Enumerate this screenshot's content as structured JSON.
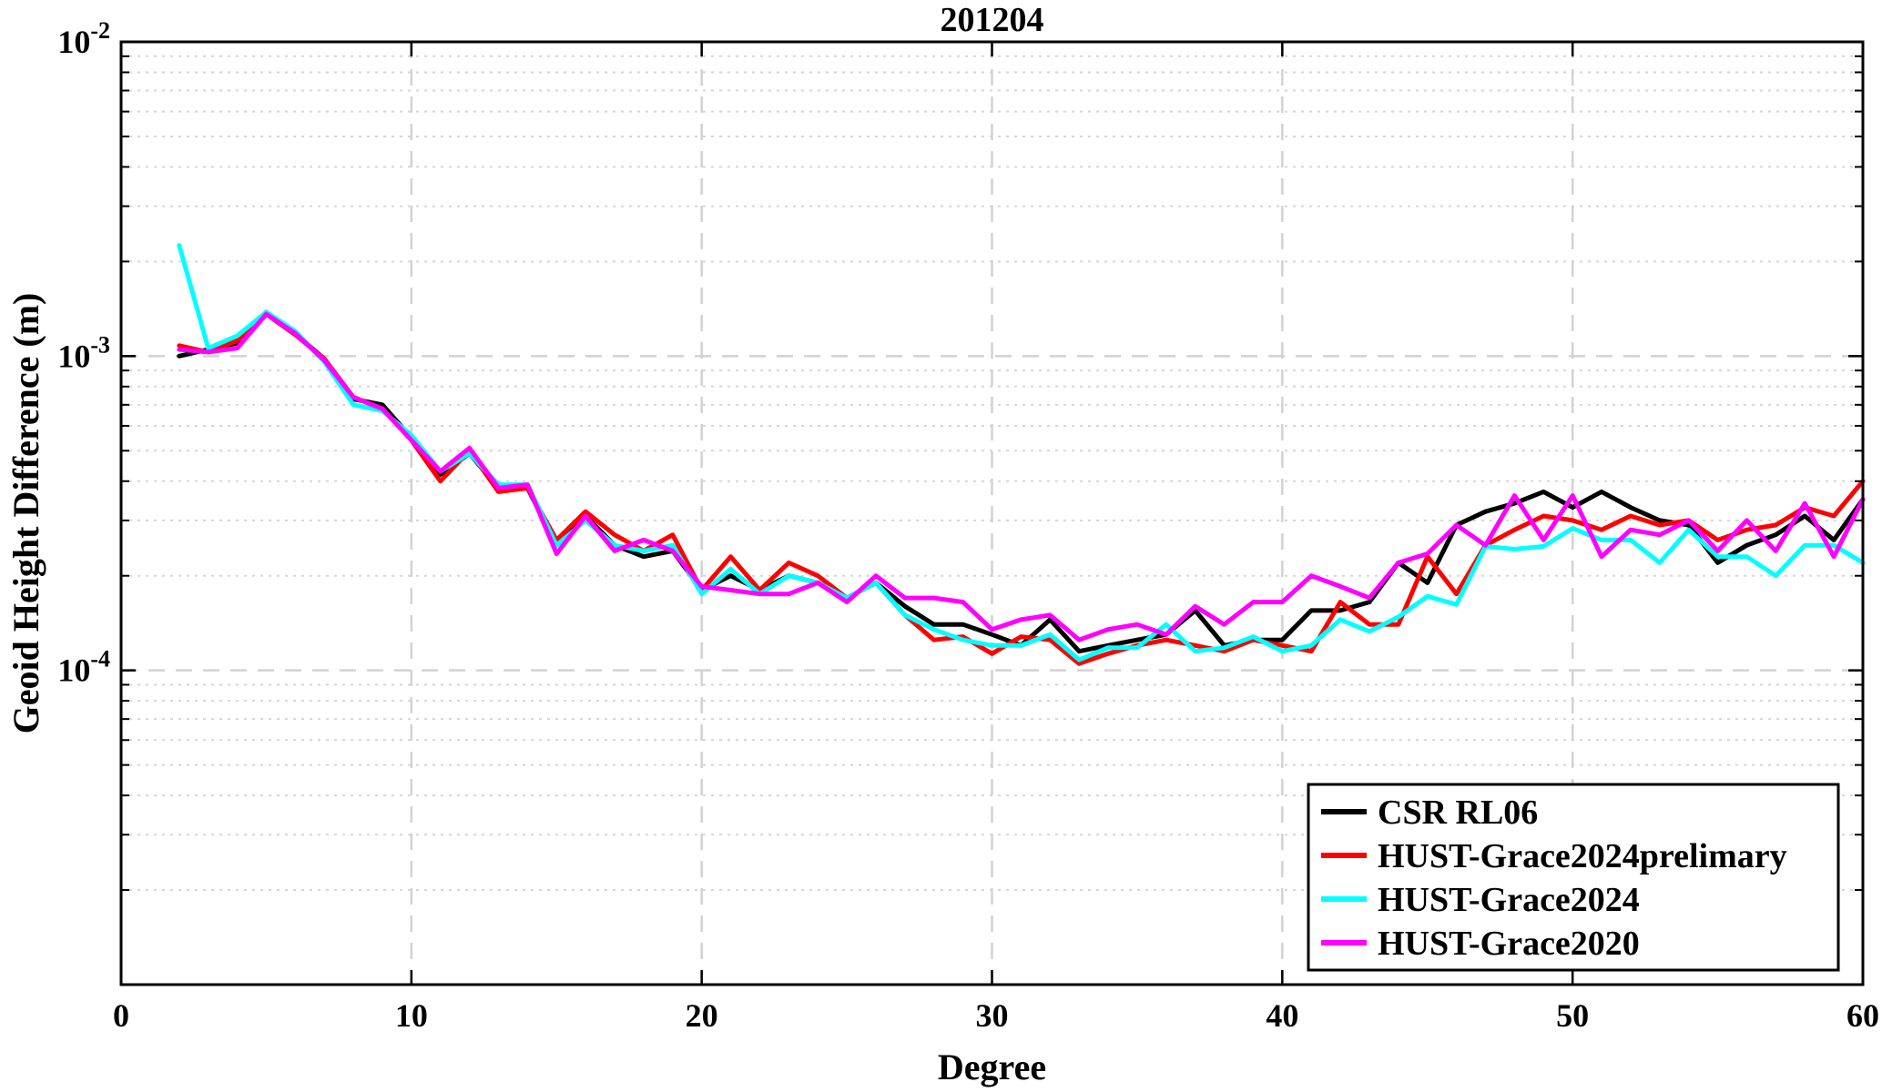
{
  "chart_data": {
    "type": "line",
    "title": "201204",
    "xlabel": "Degree",
    "ylabel": "Geoid Height Difference (m)",
    "xlim": [
      0,
      60
    ],
    "ylim": [
      1e-05,
      0.01
    ],
    "yscale": "log",
    "x_ticks": [
      0,
      10,
      20,
      30,
      40,
      50,
      60
    ],
    "y_ticks": [
      {
        "value": 0.0001,
        "base": "10",
        "exp": "-4"
      },
      {
        "value": 0.001,
        "base": "10",
        "exp": "-3"
      },
      {
        "value": 0.01,
        "base": "10",
        "exp": "-2"
      }
    ],
    "grid": true,
    "legend_position": "bottom-right",
    "x": [
      2,
      3,
      4,
      5,
      6,
      7,
      8,
      9,
      10,
      11,
      12,
      13,
      14,
      15,
      16,
      17,
      18,
      19,
      20,
      21,
      22,
      23,
      24,
      25,
      26,
      27,
      28,
      29,
      30,
      31,
      32,
      33,
      34,
      35,
      36,
      37,
      38,
      39,
      40,
      41,
      42,
      43,
      44,
      45,
      46,
      47,
      48,
      49,
      50,
      51,
      52,
      53,
      54,
      55,
      56,
      57,
      58,
      59,
      60
    ],
    "series": [
      {
        "name": "CSR RL06",
        "color": "#000000",
        "values": [
          0.001,
          0.00105,
          0.0011,
          0.00138,
          0.00118,
          0.00098,
          0.00073,
          0.0007,
          0.00055,
          0.00042,
          0.00049,
          0.00038,
          0.00038,
          0.00025,
          0.00031,
          0.00025,
          0.00023,
          0.00024,
          0.00018,
          0.0002,
          0.00018,
          0.0002,
          0.00019,
          0.00017,
          0.00019,
          0.00016,
          0.00014,
          0.00014,
          0.00013,
          0.00012,
          0.000145,
          0.000115,
          0.00012,
          0.000125,
          0.00013,
          0.000155,
          0.00012,
          0.000125,
          0.000125,
          0.000155,
          0.000155,
          0.000165,
          0.00022,
          0.00019,
          0.00029,
          0.00032,
          0.00034,
          0.00037,
          0.00033,
          0.00037,
          0.00033,
          0.0003,
          0.00029,
          0.00022,
          0.00025,
          0.00027,
          0.00031,
          0.00026,
          0.00035
        ]
      },
      {
        "name": "HUST-Grace2024prelimary",
        "color": "#ff0000",
        "values": [
          0.00108,
          0.00103,
          0.00112,
          0.00136,
          0.00117,
          0.00098,
          0.00074,
          0.00068,
          0.00054,
          0.0004,
          0.0005,
          0.00037,
          0.00038,
          0.00026,
          0.00032,
          0.00027,
          0.00024,
          0.00027,
          0.00018,
          0.00023,
          0.00018,
          0.00022,
          0.0002,
          0.00017,
          0.00019,
          0.00015,
          0.000125,
          0.000128,
          0.000113,
          0.000128,
          0.000125,
          0.000105,
          0.000113,
          0.00012,
          0.000125,
          0.00012,
          0.000115,
          0.000125,
          0.00012,
          0.000115,
          0.000165,
          0.00014,
          0.00014,
          0.00023,
          0.000175,
          0.00025,
          0.00028,
          0.00031,
          0.0003,
          0.00028,
          0.00031,
          0.00029,
          0.0003,
          0.00026,
          0.00028,
          0.00029,
          0.00033,
          0.00031,
          0.0004
        ]
      },
      {
        "name": "HUST-Grace2024",
        "color": "#00ffff",
        "values": [
          0.00225,
          0.00106,
          0.00116,
          0.00138,
          0.0012,
          0.00096,
          0.0007,
          0.00067,
          0.00056,
          0.00043,
          0.00049,
          0.00039,
          0.00039,
          0.00025,
          0.0003,
          0.00025,
          0.00024,
          0.00025,
          0.000175,
          0.00021,
          0.000175,
          0.0002,
          0.00019,
          0.00017,
          0.00019,
          0.00015,
          0.000135,
          0.000125,
          0.00012,
          0.00012,
          0.00013,
          0.000108,
          0.000118,
          0.000118,
          0.00014,
          0.000115,
          0.000118,
          0.000128,
          0.000115,
          0.00012,
          0.000145,
          0.000133,
          0.000148,
          0.000172,
          0.000162,
          0.000248,
          0.000243,
          0.000248,
          0.000283,
          0.00026,
          0.00026,
          0.00022,
          0.00028,
          0.00023,
          0.00023,
          0.0002,
          0.00025,
          0.00025,
          0.00022
        ]
      },
      {
        "name": "HUST-Grace2020",
        "color": "#ff00ff",
        "values": [
          0.00105,
          0.00103,
          0.00106,
          0.00136,
          0.00118,
          0.00097,
          0.00074,
          0.00068,
          0.00054,
          0.00043,
          0.00051,
          0.00038,
          0.00039,
          0.000235,
          0.00031,
          0.00024,
          0.00026,
          0.00024,
          0.000185,
          0.00018,
          0.000175,
          0.000175,
          0.00019,
          0.000165,
          0.0002,
          0.00017,
          0.00017,
          0.000165,
          0.000135,
          0.000145,
          0.00015,
          0.000125,
          0.000135,
          0.00014,
          0.00013,
          0.00016,
          0.00014,
          0.000165,
          0.000165,
          0.0002,
          0.000185,
          0.00017,
          0.00022,
          0.000235,
          0.00029,
          0.00025,
          0.00036,
          0.00026,
          0.00036,
          0.00023,
          0.00028,
          0.00027,
          0.0003,
          0.00024,
          0.0003,
          0.00024,
          0.00034,
          0.00023,
          0.00035
        ]
      }
    ]
  }
}
